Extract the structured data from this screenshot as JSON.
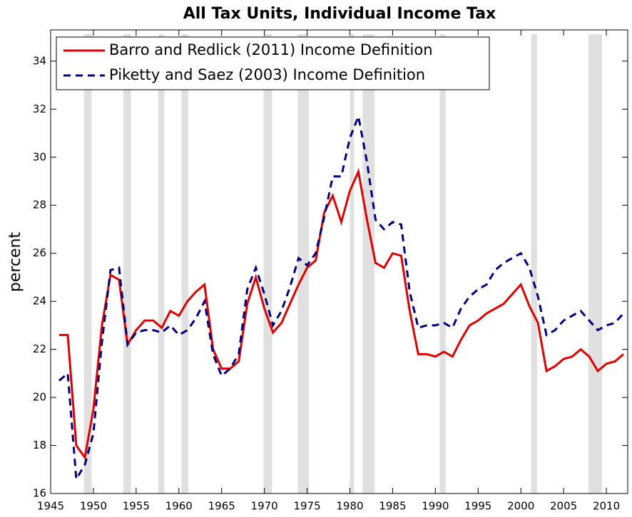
{
  "chart_data": {
    "type": "line",
    "title": "All Tax Units, Individual Income Tax",
    "y_label": "percent",
    "x": [
      1946,
      1947,
      1948,
      1949,
      1950,
      1951,
      1952,
      1953,
      1954,
      1955,
      1956,
      1957,
      1958,
      1959,
      1960,
      1961,
      1962,
      1963,
      1964,
      1965,
      1966,
      1967,
      1968,
      1969,
      1970,
      1971,
      1972,
      1973,
      1974,
      1975,
      1976,
      1977,
      1978,
      1979,
      1980,
      1981,
      1982,
      1983,
      1984,
      1985,
      1986,
      1987,
      1988,
      1989,
      1990,
      1991,
      1992,
      1993,
      1994,
      1995,
      1996,
      1997,
      1998,
      1999,
      2000,
      2001,
      2002,
      2003,
      2004,
      2005,
      2006,
      2007,
      2008,
      2009,
      2010,
      2011,
      2012
    ],
    "series": [
      {
        "name": "Barro and Redlick (2011) Income Definition",
        "color": "#e00000",
        "dash": false,
        "values": [
          22.6,
          22.6,
          18.0,
          17.5,
          19.5,
          23.0,
          25.1,
          24.9,
          22.2,
          22.8,
          23.2,
          23.2,
          22.9,
          23.6,
          23.4,
          24.0,
          24.4,
          24.7,
          22.0,
          21.2,
          21.2,
          21.5,
          23.9,
          25.0,
          23.7,
          22.7,
          23.1,
          23.9,
          24.7,
          25.4,
          25.7,
          27.7,
          28.4,
          27.3,
          28.6,
          29.4,
          27.4,
          25.6,
          25.4,
          26.0,
          25.9,
          23.6,
          21.8,
          21.8,
          21.7,
          21.9,
          21.7,
          22.4,
          23.0,
          23.2,
          23.5,
          23.7,
          23.9,
          24.3,
          24.7,
          23.8,
          23.1,
          21.1,
          21.3,
          21.6,
          21.7,
          22.0,
          21.7,
          21.1,
          21.4,
          21.5,
          21.8
        ]
      },
      {
        "name": "Piketty and Saez (2003) Income Definition",
        "color": "#00007f",
        "dash": true,
        "values": [
          20.7,
          21.0,
          16.6,
          17.2,
          18.5,
          22.3,
          25.3,
          25.4,
          22.2,
          22.7,
          22.8,
          22.8,
          22.7,
          23.0,
          22.6,
          22.8,
          23.3,
          24.0,
          21.8,
          20.9,
          21.2,
          21.8,
          24.5,
          25.4,
          24.3,
          23.0,
          23.6,
          24.6,
          25.8,
          25.5,
          26.0,
          27.5,
          29.2,
          29.2,
          30.8,
          31.7,
          29.8,
          27.4,
          27.0,
          27.3,
          27.2,
          24.4,
          22.9,
          23.0,
          23.0,
          23.1,
          22.9,
          23.7,
          24.2,
          24.5,
          24.7,
          25.3,
          25.6,
          25.8,
          26.0,
          25.4,
          24.2,
          22.6,
          22.8,
          23.2,
          23.4,
          23.6,
          23.2,
          22.8,
          23.0,
          23.1,
          23.5
        ]
      }
    ],
    "shaded_regions": [
      [
        1948.9,
        1949.8
      ],
      [
        1953.5,
        1954.4
      ],
      [
        1957.6,
        1958.3
      ],
      [
        1960.3,
        1961.1
      ],
      [
        1969.9,
        1970.9
      ],
      [
        1973.9,
        1975.2
      ],
      [
        1980.0,
        1980.5
      ],
      [
        1981.5,
        1982.9
      ],
      [
        1990.5,
        1991.2
      ],
      [
        2001.2,
        2001.9
      ],
      [
        2007.9,
        2009.5
      ]
    ],
    "shade_color": "#e0e0e0",
    "xlim": [
      1945,
      2012.5
    ],
    "xticks": [
      1945,
      1950,
      1955,
      1960,
      1965,
      1970,
      1975,
      1980,
      1985,
      1990,
      1995,
      2000,
      2005,
      2010
    ],
    "ylim": [
      16,
      35.3
    ],
    "yticks": [
      16,
      18,
      20,
      22,
      24,
      26,
      28,
      30,
      32,
      34
    ],
    "legend": "upper-left"
  }
}
